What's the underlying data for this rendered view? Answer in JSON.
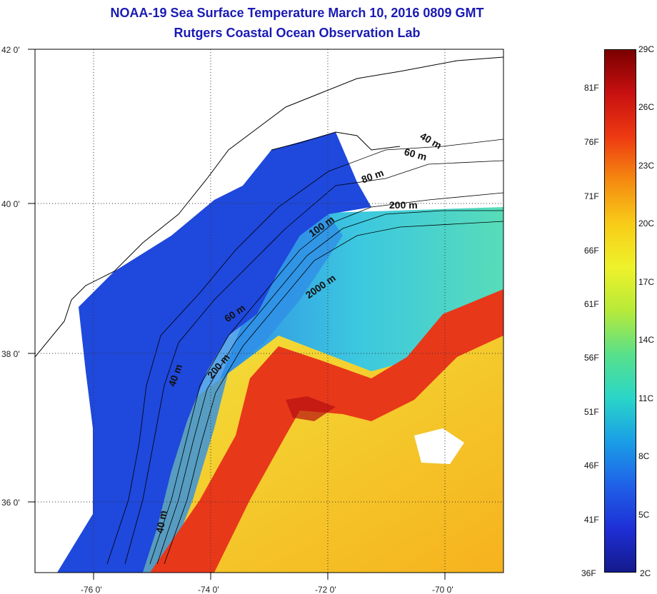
{
  "title": {
    "line1": "NOAA-19 Sea Surface Temperature March 10, 2016 0809 GMT",
    "line2": "Rutgers Coastal Ocean Observation Lab"
  },
  "map": {
    "lat_ticks": [
      "42 0'",
      "40 0'",
      "38 0'",
      "36 0'"
    ],
    "lon_ticks": [
      "-76 0'",
      "-74 0'",
      "-72 0'",
      "-70 0'"
    ],
    "contour_labels": [
      "40 m",
      "60 m",
      "80 m",
      "200 m",
      "100 m",
      "2000 m",
      "60 m",
      "40 m",
      "200 m",
      "40 m"
    ],
    "colors": {
      "land": "#ffffff",
      "coast": "#000000",
      "cold": "#1a3fd8",
      "warm": "#e83a16"
    }
  },
  "colorbar": {
    "fahrenheit": [
      "81F",
      "76F",
      "71F",
      "66F",
      "61F",
      "56F",
      "51F",
      "46F",
      "41F",
      "36F"
    ],
    "celsius": [
      "29C",
      "26C",
      "23C",
      "20C",
      "17C",
      "14C",
      "11C",
      "8C",
      "5C",
      "2C"
    ],
    "gradient": [
      "#7a0000",
      "#c81010",
      "#ee3a12",
      "#f58a10",
      "#f8cc18",
      "#eef22a",
      "#b6ea3a",
      "#58e08a",
      "#2ad6c8",
      "#1a9ee6",
      "#1f62e8",
      "#1e2fd6",
      "#141a8c"
    ]
  }
}
